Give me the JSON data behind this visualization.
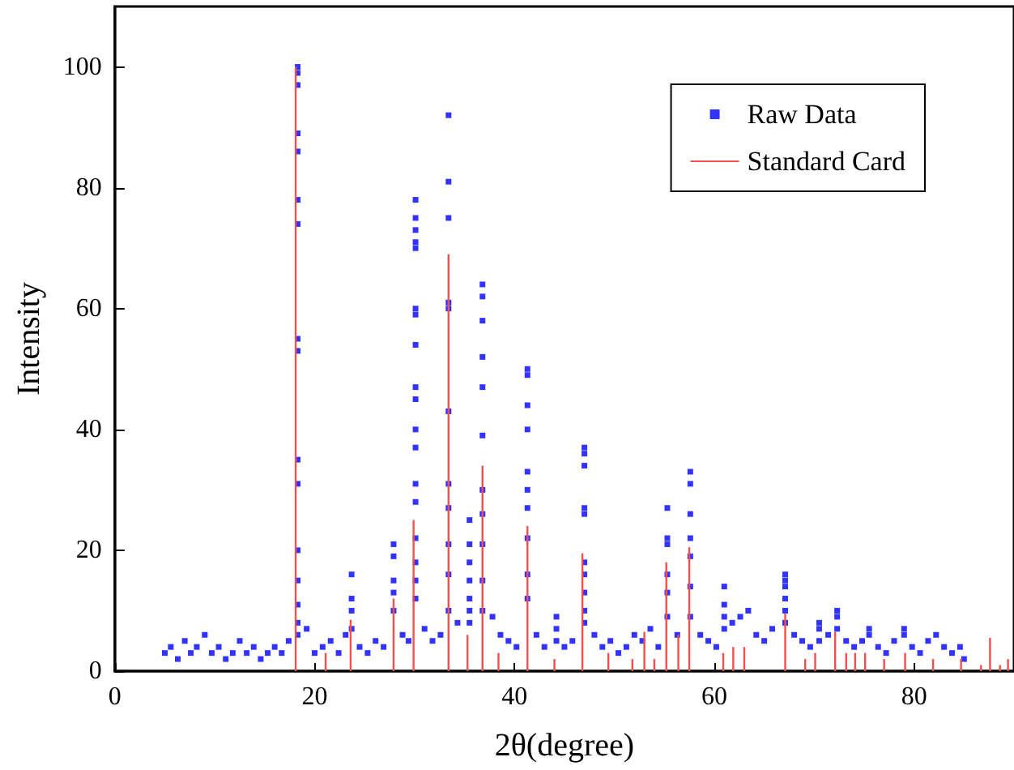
{
  "chart_data": {
    "type": "scatter",
    "xlabel": "2θ(degree)",
    "ylabel": "Intensity",
    "xlim": [
      0,
      90
    ],
    "xticks": [
      0,
      20,
      40,
      60,
      80
    ],
    "ylim": [
      0,
      110
    ],
    "yticks": [
      0,
      20,
      40,
      60,
      80,
      100
    ],
    "grid": false,
    "legend": "top right",
    "marker": "square",
    "series": [
      {
        "name": "Raw Data",
        "color": "#0000ff",
        "x": [
          5,
          5.6,
          6.3,
          7,
          7.6,
          8.2,
          9,
          9.7,
          10.4,
          11.1,
          11.8,
          12.5,
          13.2,
          13.9,
          14.6,
          15.3,
          16,
          16.7,
          17.4,
          18.3,
          18.3,
          18.3,
          18.3,
          18.3,
          18.3,
          18.3,
          18.3,
          18.3,
          18.3,
          18.3,
          18.3,
          18.3,
          18.3,
          18.3,
          18.3,
          19.2,
          20,
          20.8,
          21.6,
          22.4,
          23.1,
          23.7,
          23.7,
          23.7,
          23.7,
          24.5,
          25.3,
          26.1,
          26.9,
          27.9,
          27.9,
          27.9,
          27.9,
          27.9,
          28.8,
          29.4,
          30.1,
          30.1,
          30.1,
          30.1,
          30.1,
          30.1,
          30.1,
          30.1,
          30.1,
          30.1,
          30.1,
          30.1,
          30.1,
          30.1,
          30.1,
          30.1,
          30.1,
          30.1,
          31,
          31.8,
          32.6,
          33.4,
          33.4,
          33.4,
          33.4,
          33.4,
          33.4,
          33.4,
          33.4,
          33.4,
          33.4,
          33.4,
          34.3,
          35.5,
          35.5,
          35.5,
          35.5,
          35.5,
          35.5,
          35.5,
          36.8,
          36.8,
          36.8,
          36.8,
          36.8,
          36.8,
          36.8,
          36.8,
          36.8,
          36.8,
          36.8,
          37.8,
          38.6,
          39.4,
          40.2,
          41.3,
          41.3,
          41.3,
          41.3,
          41.3,
          41.3,
          41.3,
          41.3,
          41.3,
          41.3,
          42.2,
          43,
          44.2,
          44.2,
          44.2,
          45,
          45.8,
          47,
          47,
          47,
          47,
          47,
          47,
          47,
          47,
          47,
          47,
          48,
          48.8,
          49.6,
          50.4,
          51.2,
          52,
          52.8,
          53.6,
          54.4,
          55.3,
          55.3,
          55.3,
          55.3,
          55.3,
          55.3,
          56.3,
          57.6,
          57.6,
          57.6,
          57.6,
          57.6,
          57.6,
          57.6,
          58.6,
          59.4,
          60.2,
          61,
          61,
          61,
          61,
          61.8,
          62.6,
          63.4,
          64.2,
          65,
          65.8,
          67.1,
          67.1,
          67.1,
          67.1,
          67.1,
          67.1,
          68,
          68.8,
          69.6,
          70.5,
          70.5,
          70.5,
          71.4,
          72.3,
          72.3,
          72.3,
          73.2,
          74,
          74.8,
          75.5,
          75.5,
          76.4,
          77.2,
          78,
          79,
          79,
          79.8,
          80.6,
          81.4,
          82.2,
          83,
          83.8,
          84.6,
          85
        ],
        "values": [
          3,
          4,
          2,
          5,
          3,
          4,
          6,
          3,
          4,
          2,
          3,
          5,
          3,
          4,
          2,
          3,
          4,
          3,
          5,
          100,
          99,
          97,
          89,
          86,
          78,
          74,
          55,
          53,
          35,
          31,
          20,
          15,
          11,
          8,
          6,
          7,
          3,
          4,
          5,
          3,
          6,
          16,
          12,
          10,
          7,
          4,
          3,
          5,
          4,
          21,
          19,
          15,
          13,
          10,
          6,
          5,
          78,
          75,
          73,
          71,
          70,
          60,
          59,
          54,
          47,
          45,
          40,
          37,
          31,
          28,
          22,
          18,
          15,
          12,
          7,
          5,
          6,
          92,
          81,
          75,
          61,
          60,
          43,
          31,
          27,
          21,
          16,
          10,
          8,
          25,
          21,
          18,
          15,
          12,
          10,
          8,
          64,
          62,
          58,
          52,
          47,
          39,
          30,
          26,
          21,
          15,
          10,
          9,
          6,
          5,
          4,
          50,
          49,
          44,
          40,
          33,
          30,
          27,
          22,
          16,
          12,
          6,
          4,
          9,
          7,
          5,
          4,
          5,
          37,
          36,
          34,
          27,
          26,
          18,
          16,
          13,
          10,
          8,
          6,
          4,
          5,
          3,
          4,
          6,
          5,
          7,
          4,
          27,
          22,
          21,
          16,
          13,
          9,
          6,
          33,
          31,
          26,
          22,
          19,
          14,
          9,
          6,
          5,
          4,
          14,
          11,
          9,
          7,
          8,
          9,
          10,
          6,
          5,
          7,
          16,
          15,
          14,
          12,
          10,
          8,
          6,
          5,
          4,
          8,
          7,
          5,
          6,
          10,
          9,
          7,
          5,
          4,
          5,
          7,
          6,
          4,
          3,
          5,
          7,
          6,
          4,
          3,
          5,
          6,
          4,
          3,
          4,
          2
        ]
      },
      {
        "name": "Standard Card",
        "color": "#f05050",
        "type": "bar",
        "x": [
          18.1,
          21.1,
          23.6,
          27.9,
          29.9,
          33.4,
          35.3,
          36.8,
          38.4,
          41.3,
          44,
          46.8,
          49.4,
          51.8,
          53,
          54,
          55.2,
          56.4,
          57.5,
          60.9,
          61.9,
          63,
          67.1,
          69.1,
          70.1,
          72.1,
          73.2,
          74.1,
          75.1,
          77,
          79.1,
          81.9,
          84.7,
          86.7,
          87.6,
          88.6,
          89.4
        ],
        "values": [
          100,
          3,
          8.5,
          12,
          25,
          69,
          6,
          34,
          3,
          24,
          2,
          19.5,
          3,
          2,
          6.5,
          2,
          18,
          6,
          20.5,
          3,
          4,
          4,
          9.5,
          2,
          3,
          6.5,
          3,
          3,
          3,
          2,
          3,
          2,
          2,
          1,
          5.5,
          1,
          2
        ]
      }
    ]
  }
}
